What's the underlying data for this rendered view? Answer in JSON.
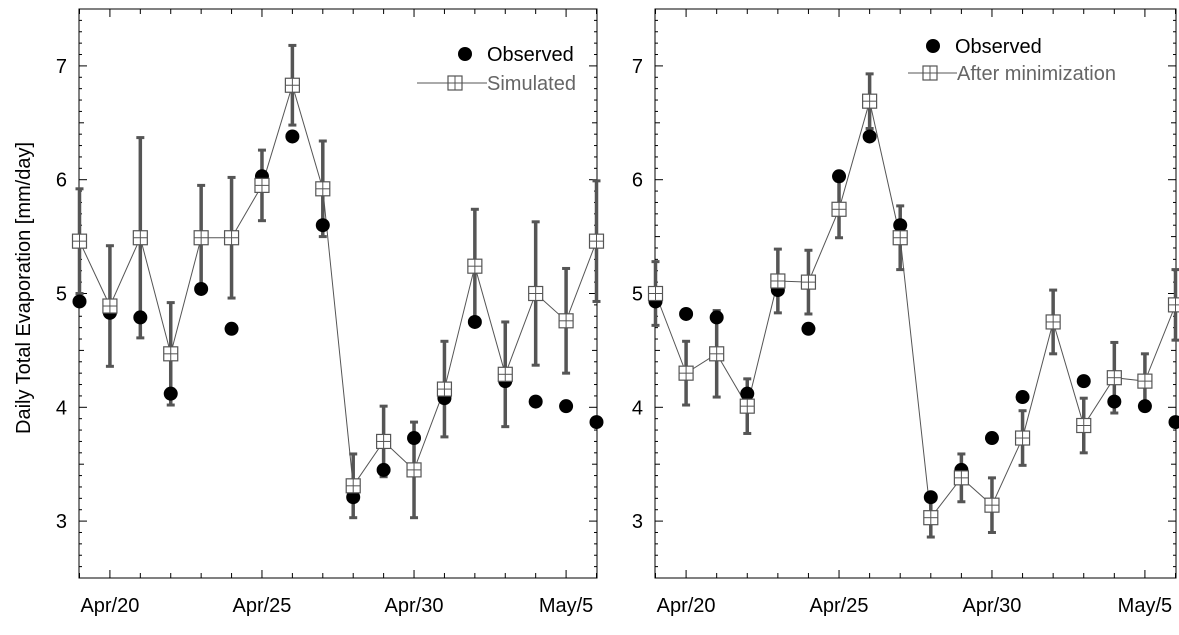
{
  "ylabel": "Daily Total Evaporation [mm/day]",
  "colors": {
    "observed": "#000000",
    "simulated_line": "#555555",
    "errorbar": "#555555",
    "legend_text": "#666666"
  },
  "chart_data": [
    {
      "type": "scatter",
      "title": "",
      "xlabel": "",
      "ylabel": "Daily Total Evaporation [mm/day]",
      "x_dates": [
        "Apr/19",
        "Apr/20",
        "Apr/21",
        "Apr/22",
        "Apr/23",
        "Apr/24",
        "Apr/25",
        "Apr/26",
        "Apr/27",
        "Apr/28",
        "Apr/29",
        "Apr/30",
        "May/1",
        "May/2",
        "May/3",
        "May/4",
        "May/5",
        "May/6"
      ],
      "xticks": [
        "Apr/20",
        "Apr/25",
        "Apr/30",
        "May/5"
      ],
      "yticks": [
        3,
        4,
        5,
        6,
        7
      ],
      "ylim": [
        2.5,
        7.5
      ],
      "xlim": [
        "Apr/19",
        "May/6"
      ],
      "grid": false,
      "legend_position": "top-right",
      "series": [
        {
          "name": "Observed",
          "marker": "filled-circle",
          "points": [
            [
              "Apr/19",
              4.93
            ],
            [
              "Apr/20",
              4.83
            ],
            [
              "Apr/21",
              4.79
            ],
            [
              "Apr/22",
              4.12
            ],
            [
              "Apr/23",
              5.04
            ],
            [
              "Apr/24",
              4.69
            ],
            [
              "Apr/25",
              6.03
            ],
            [
              "Apr/26",
              6.38
            ],
            [
              "Apr/27",
              5.6
            ],
            [
              "Apr/28",
              3.21
            ],
            [
              "Apr/29",
              3.45
            ],
            [
              "Apr/30",
              3.73
            ],
            [
              "May/1",
              4.08
            ],
            [
              "May/2",
              4.75
            ],
            [
              "May/3",
              4.23
            ],
            [
              "May/4",
              4.05
            ],
            [
              "May/5",
              4.01
            ],
            [
              "May/6",
              3.87
            ]
          ]
        },
        {
          "name": "Simulated",
          "marker": "square-cross",
          "points": [
            [
              "Apr/19",
              5.46,
              0.46
            ],
            [
              "Apr/20",
              4.89,
              0.53
            ],
            [
              "Apr/21",
              5.49,
              0.88
            ],
            [
              "Apr/22",
              4.47,
              0.45
            ],
            [
              "Apr/23",
              5.49,
              0.46
            ],
            [
              "Apr/24",
              5.49,
              0.53
            ],
            [
              "Apr/25",
              5.95,
              0.31
            ],
            [
              "Apr/26",
              6.83,
              0.35
            ],
            [
              "Apr/27",
              5.92,
              0.42
            ],
            [
              "Apr/28",
              3.31,
              0.28
            ],
            [
              "Apr/29",
              3.7,
              0.31
            ],
            [
              "Apr/30",
              3.45,
              0.42
            ],
            [
              "May/1",
              4.16,
              0.42
            ],
            [
              "May/2",
              5.24,
              0.5
            ],
            [
              "May/3",
              4.29,
              0.46
            ],
            [
              "May/4",
              5.0,
              0.63
            ],
            [
              "May/5",
              4.76,
              0.46
            ],
            [
              "May/6",
              5.46,
              0.53
            ]
          ]
        }
      ]
    },
    {
      "type": "scatter",
      "title": "",
      "xlabel": "",
      "ylabel": "",
      "x_dates": [
        "Apr/19",
        "Apr/20",
        "Apr/21",
        "Apr/22",
        "Apr/23",
        "Apr/24",
        "Apr/25",
        "Apr/26",
        "Apr/27",
        "Apr/28",
        "Apr/29",
        "Apr/30",
        "May/1",
        "May/2",
        "May/3",
        "May/4",
        "May/5",
        "May/6"
      ],
      "xticks": [
        "Apr/20",
        "Apr/25",
        "Apr/30",
        "May/5"
      ],
      "yticks": [
        3,
        4,
        5,
        6,
        7
      ],
      "ylim": [
        2.5,
        7.5
      ],
      "xlim": [
        "Apr/19",
        "May/6"
      ],
      "grid": false,
      "legend_position": "top-right",
      "series": [
        {
          "name": "Observed",
          "marker": "filled-circle",
          "points": [
            [
              "Apr/19",
              4.93
            ],
            [
              "Apr/20",
              4.82
            ],
            [
              "Apr/21",
              4.79
            ],
            [
              "Apr/22",
              4.12
            ],
            [
              "Apr/23",
              5.03
            ],
            [
              "Apr/24",
              4.69
            ],
            [
              "Apr/25",
              6.03
            ],
            [
              "Apr/26",
              6.38
            ],
            [
              "Apr/27",
              5.6
            ],
            [
              "Apr/28",
              3.21
            ],
            [
              "Apr/29",
              3.45
            ],
            [
              "Apr/30",
              3.73
            ],
            [
              "May/1",
              4.09
            ],
            [
              "May/2",
              4.75
            ],
            [
              "May/3",
              4.23
            ],
            [
              "May/4",
              4.05
            ],
            [
              "May/5",
              4.01
            ],
            [
              "May/6",
              3.87
            ]
          ]
        },
        {
          "name": "After minimization",
          "marker": "square-cross",
          "points": [
            [
              "Apr/19",
              5.0,
              0.28
            ],
            [
              "Apr/20",
              4.3,
              0.28
            ],
            [
              "Apr/21",
              4.47,
              0.38
            ],
            [
              "Apr/22",
              4.01,
              0.24
            ],
            [
              "Apr/23",
              5.11,
              0.28
            ],
            [
              "Apr/24",
              5.1,
              0.28
            ],
            [
              "Apr/25",
              5.74,
              0.25
            ],
            [
              "Apr/26",
              6.69,
              0.24
            ],
            [
              "Apr/27",
              5.49,
              0.28
            ],
            [
              "Apr/28",
              3.03,
              0.17
            ],
            [
              "Apr/29",
              3.38,
              0.21
            ],
            [
              "Apr/30",
              3.14,
              0.24
            ],
            [
              "May/1",
              3.73,
              0.24
            ],
            [
              "May/2",
              4.75,
              0.28
            ],
            [
              "May/3",
              3.84,
              0.24
            ],
            [
              "May/4",
              4.26,
              0.31
            ],
            [
              "May/5",
              4.23,
              0.24
            ],
            [
              "May/6",
              4.9,
              0.31
            ]
          ]
        }
      ]
    }
  ]
}
